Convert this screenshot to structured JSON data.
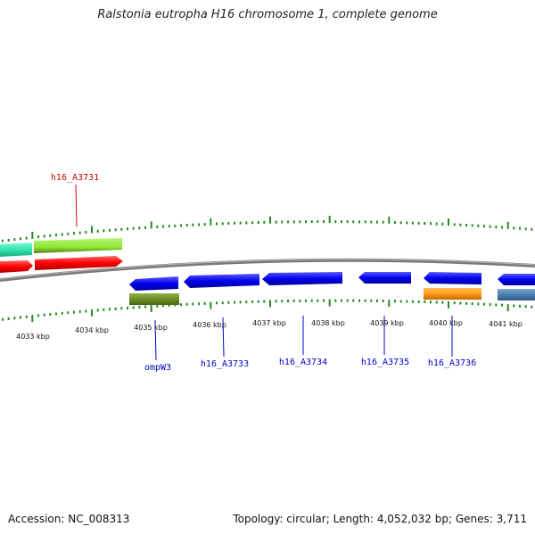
{
  "title": "Ralstonia eutropha H16 chromosome 1, complete genome",
  "footer": {
    "accession_label": "Accession:",
    "accession": "NC_008313",
    "topology_label": "Topology:",
    "topology": "circular",
    "length_label": "Length:",
    "length": "4,052,032 bp",
    "genes_label": "Genes:",
    "genes": "3,711"
  },
  "scale": {
    "tick_labels": [
      "4033 kbp",
      "4034 kbp",
      "4035 kbp",
      "4036 kbp",
      "4037 kbp",
      "4038 kbp",
      "4039 kbp",
      "4040 kbp",
      "4041 kbp"
    ]
  },
  "gene_labels": [
    {
      "text": "h16_A3731",
      "strand": "forward",
      "color": "#cc0000"
    },
    {
      "text": "ompW3",
      "strand": "reverse",
      "color": "#0000cc"
    },
    {
      "text": "h16_A3733",
      "strand": "reverse",
      "color": "#0000cc"
    },
    {
      "text": "h16_A3734",
      "strand": "reverse",
      "color": "#0000cc"
    },
    {
      "text": "h16_A3735",
      "strand": "reverse",
      "color": "#0000cc"
    },
    {
      "text": "h16_A3736",
      "strand": "reverse",
      "color": "#0000cc"
    }
  ],
  "colors": {
    "forward_cds": "#ff0000",
    "reverse_cds": "#0000ee",
    "forward_feature_a": "#33e6b0",
    "forward_feature_b": "#8ee830",
    "reverse_feature_olive": "#6b8e23",
    "reverse_feature_orange": "#ff9a1a",
    "reverse_feature_steel": "#4a7fb0",
    "backbone": "#808080",
    "tick": "#228b22"
  }
}
